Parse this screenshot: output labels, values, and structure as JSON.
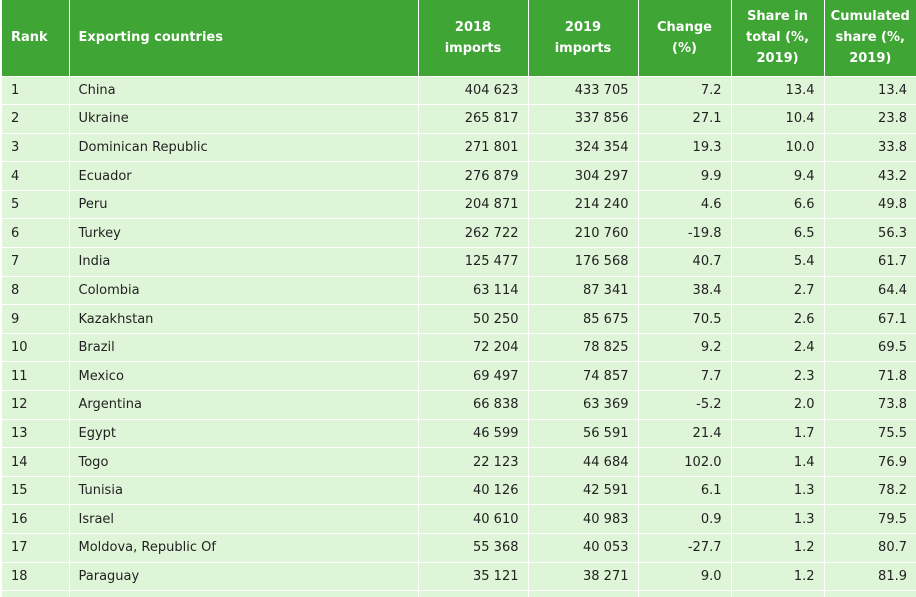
{
  "headers": {
    "rank": "Rank",
    "country": "Exporting countries",
    "imports_2018": "2018 imports",
    "imports_2019": "2019 imports",
    "change": "Change (%)",
    "share": "Share in total (%, 2019)",
    "cumulated": "Cumulated share (%, 2019)"
  },
  "rows": [
    {
      "rank": "1",
      "country": "China",
      "imports_2018": "404 623",
      "imports_2019": "433 705",
      "change": "7.2",
      "share": "13.4",
      "cumulated": "13.4"
    },
    {
      "rank": "2",
      "country": "Ukraine",
      "imports_2018": "265 817",
      "imports_2019": "337 856",
      "change": "27.1",
      "share": "10.4",
      "cumulated": "23.8"
    },
    {
      "rank": "3",
      "country": "Dominican Republic",
      "imports_2018": "271 801",
      "imports_2019": "324 354",
      "change": "19.3",
      "share": "10.0",
      "cumulated": "33.8"
    },
    {
      "rank": "4",
      "country": "Ecuador",
      "imports_2018": "276 879",
      "imports_2019": "304 297",
      "change": "9.9",
      "share": "9.4",
      "cumulated": "43.2"
    },
    {
      "rank": "5",
      "country": "Peru",
      "imports_2018": "204 871",
      "imports_2019": "214 240",
      "change": "4.6",
      "share": "6.6",
      "cumulated": "49.8"
    },
    {
      "rank": "6",
      "country": "Turkey",
      "imports_2018": "262 722",
      "imports_2019": "210 760",
      "change": "-19.8",
      "share": "6.5",
      "cumulated": "56.3"
    },
    {
      "rank": "7",
      "country": "India",
      "imports_2018": "125 477",
      "imports_2019": "176 568",
      "change": "40.7",
      "share": "5.4",
      "cumulated": "61.7"
    },
    {
      "rank": "8",
      "country": "Colombia",
      "imports_2018": "63 114",
      "imports_2019": "87 341",
      "change": "38.4",
      "share": "2.7",
      "cumulated": "64.4"
    },
    {
      "rank": "9",
      "country": "Kazakhstan",
      "imports_2018": "50 250",
      "imports_2019": "85 675",
      "change": "70.5",
      "share": "2.6",
      "cumulated": "67.1"
    },
    {
      "rank": "10",
      "country": "Brazil",
      "imports_2018": "72 204",
      "imports_2019": "78 825",
      "change": "9.2",
      "share": "2.4",
      "cumulated": "69.5"
    },
    {
      "rank": "11",
      "country": "Mexico",
      "imports_2018": "69 497",
      "imports_2019": "74 857",
      "change": "7.7",
      "share": "2.3",
      "cumulated": "71.8"
    },
    {
      "rank": "12",
      "country": "Argentina",
      "imports_2018": "66 838",
      "imports_2019": "63 369",
      "change": "-5.2",
      "share": "2.0",
      "cumulated": "73.8"
    },
    {
      "rank": "13",
      "country": "Egypt",
      "imports_2018": "46 599",
      "imports_2019": "56 591",
      "change": "21.4",
      "share": "1.7",
      "cumulated": "75.5"
    },
    {
      "rank": "14",
      "country": "Togo",
      "imports_2018": "22 123",
      "imports_2019": "44 684",
      "change": "102.0",
      "share": "1.4",
      "cumulated": "76.9"
    },
    {
      "rank": "15",
      "country": "Tunisia",
      "imports_2018": "40 126",
      "imports_2019": "42 591",
      "change": "6.1",
      "share": "1.3",
      "cumulated": "78.2"
    },
    {
      "rank": "16",
      "country": "Israel",
      "imports_2018": "40 610",
      "imports_2019": "40 983",
      "change": "0.9",
      "share": "1.3",
      "cumulated": "79.5"
    },
    {
      "rank": "17",
      "country": "Moldova, Republic Of",
      "imports_2018": "55 368",
      "imports_2019": "40 053",
      "change": "-27.7",
      "share": "1.2",
      "cumulated": "80.7"
    },
    {
      "rank": "18",
      "country": "Paraguay",
      "imports_2018": "35 121",
      "imports_2019": "38 271",
      "change": "9.0",
      "share": "1.2",
      "cumulated": "81.9"
    }
  ],
  "colors": {
    "header_bg": "#3fa535",
    "row_bg": "#dff5d8",
    "header_text": "#ffffff"
  }
}
